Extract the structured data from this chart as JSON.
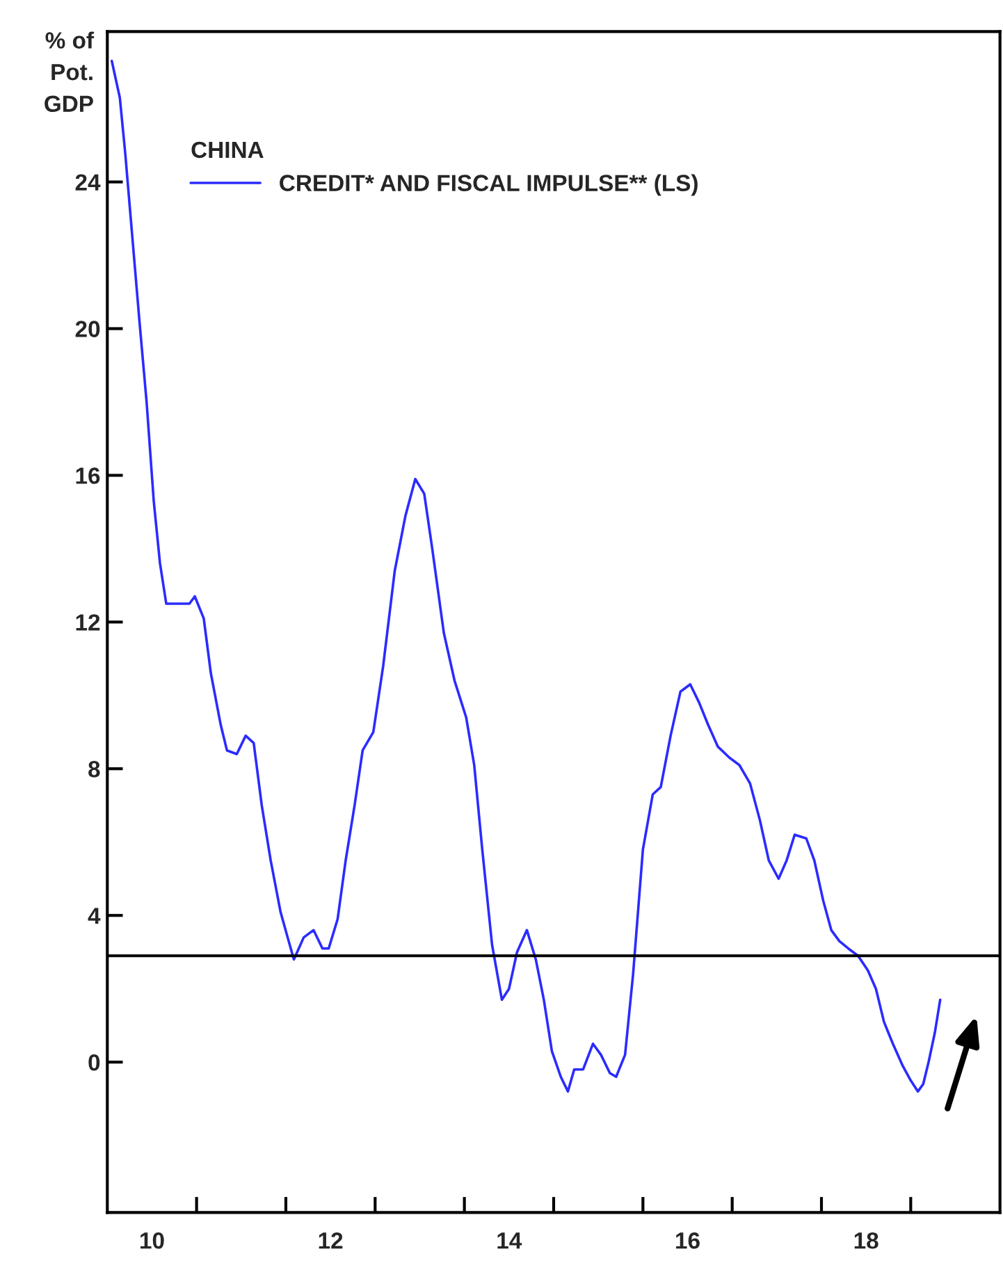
{
  "chart_data": {
    "type": "line",
    "ylabel": "% of\nPot.\nGDP",
    "legend_title": "CHINA",
    "legend": "top left",
    "grid": false,
    "marker": "none",
    "line_style": "solid",
    "xlim": [
      10,
      20
    ],
    "ylim": [
      -4.1,
      28.1
    ],
    "xticks": [
      {
        "value": 10.5,
        "label": "10"
      },
      {
        "value": 11,
        "label": null
      },
      {
        "value": 12,
        "label": null
      },
      {
        "value": 12.5,
        "label": "12"
      },
      {
        "value": 13,
        "label": null
      },
      {
        "value": 14,
        "label": null
      },
      {
        "value": 14.5,
        "label": "14"
      },
      {
        "value": 15,
        "label": null
      },
      {
        "value": 16,
        "label": null
      },
      {
        "value": 16.5,
        "label": "16"
      },
      {
        "value": 17,
        "label": null
      },
      {
        "value": 18,
        "label": null
      },
      {
        "value": 18.5,
        "label": "18"
      },
      {
        "value": 19,
        "label": null
      }
    ],
    "yticks": [
      0,
      4,
      8,
      12,
      16,
      20,
      24
    ],
    "ref_lines": [
      {
        "axis": "y",
        "value": 2.9,
        "color": "#000000"
      }
    ],
    "series": [
      {
        "name": "CREDIT* AND FISCAL IMPULSE** (LS)",
        "color": "#2b2bff",
        "x": [
          10.05,
          10.14,
          10.2,
          10.28,
          10.36,
          10.44,
          10.52,
          10.59,
          10.66,
          10.8,
          10.92,
          10.98,
          11.08,
          11.16,
          11.27,
          11.34,
          11.45,
          11.55,
          11.64,
          11.73,
          11.83,
          11.94,
          12.02,
          12.09,
          12.2,
          12.31,
          12.41,
          12.48,
          12.58,
          12.67,
          12.77,
          12.86,
          12.98,
          13.09,
          13.22,
          13.34,
          13.45,
          13.55,
          13.64,
          13.77,
          13.89,
          14.02,
          14.11,
          14.2,
          14.31,
          14.42,
          14.5,
          14.59,
          14.7,
          14.8,
          14.89,
          14.98,
          15.08,
          15.16,
          15.23,
          15.33,
          15.44,
          15.53,
          15.63,
          15.7,
          15.8,
          15.89,
          16.0,
          16.11,
          16.2,
          16.31,
          16.42,
          16.53,
          16.63,
          16.73,
          16.84,
          16.97,
          17.08,
          17.2,
          17.31,
          17.41,
          17.52,
          17.61,
          17.7,
          17.83,
          17.92,
          18.02,
          18.11,
          18.2,
          18.3,
          18.41,
          18.52,
          18.61,
          18.7,
          18.8,
          18.91,
          19.0,
          19.08,
          19.14,
          19.2,
          19.27,
          19.33
        ],
        "values": [
          27.3,
          26.3,
          24.8,
          22.5,
          20.2,
          18.0,
          15.3,
          13.6,
          12.5,
          12.5,
          12.5,
          12.7,
          12.1,
          10.6,
          9.2,
          8.5,
          8.4,
          8.9,
          8.7,
          7.0,
          5.5,
          4.1,
          3.4,
          2.8,
          3.4,
          3.6,
          3.1,
          3.1,
          3.9,
          5.5,
          7.0,
          8.5,
          9.0,
          10.8,
          13.4,
          14.9,
          15.9,
          15.5,
          14.0,
          11.7,
          10.4,
          9.4,
          8.1,
          5.8,
          3.2,
          1.7,
          2.0,
          3.0,
          3.6,
          2.8,
          1.7,
          0.3,
          -0.4,
          -0.8,
          -0.2,
          -0.2,
          0.5,
          0.2,
          -0.3,
          -0.4,
          0.2,
          2.4,
          5.8,
          7.3,
          7.5,
          8.9,
          10.1,
          10.3,
          9.8,
          9.2,
          8.6,
          8.3,
          8.1,
          7.6,
          6.6,
          5.5,
          5.0,
          5.5,
          6.2,
          6.1,
          5.5,
          4.4,
          3.6,
          3.3,
          3.1,
          2.9,
          2.5,
          2.0,
          1.1,
          0.5,
          -0.1,
          -0.5,
          -0.8,
          -0.6,
          0.0,
          0.8,
          1.7
        ]
      }
    ]
  }
}
